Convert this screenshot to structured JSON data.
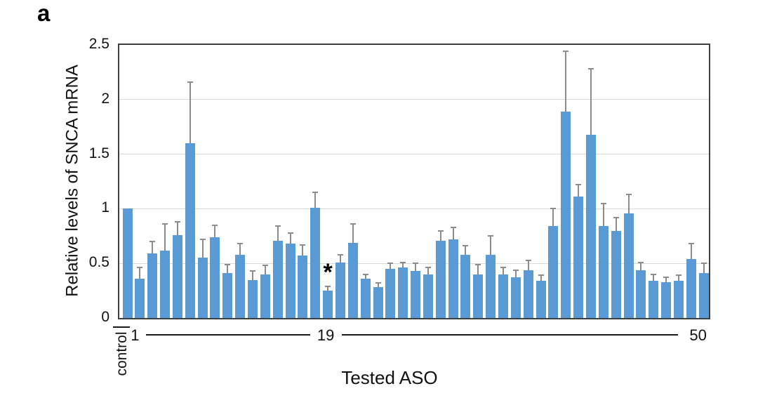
{
  "panel_label": "a",
  "chart_data": {
    "type": "bar",
    "title": "",
    "ylabel": "Relative levels of SNCA mRNA",
    "xlabel": "Tested ASO",
    "ylim": [
      0,
      2.5
    ],
    "yticks": [
      0,
      0.5,
      1,
      1.5,
      2,
      2.5
    ],
    "ytick_labels": [
      "0",
      "0.5",
      "1",
      "1.5",
      "2",
      "2.5"
    ],
    "grid": "horizontal-gridlines-on",
    "legend": "none",
    "bar_color": "#5b9bd5",
    "error_bar_color": "#8c8c8c",
    "error_bars": "upper-only",
    "x_axis_labels": [
      {
        "text": "control",
        "bar_index": 0,
        "rotated": true
      },
      {
        "text": "1",
        "bar_index": 1,
        "rotated": false
      },
      {
        "text": "19",
        "bar_index": 16,
        "rotated": false
      },
      {
        "text": "50",
        "bar_index": 46,
        "rotated": false
      }
    ],
    "annotation": {
      "text": "*",
      "bar_index": 16
    },
    "bars": [
      {
        "label": "control",
        "value": 1.0,
        "error": 0
      },
      {
        "value": 0.36,
        "error": 0.1
      },
      {
        "value": 0.59,
        "error": 0.11
      },
      {
        "value": 0.62,
        "error": 0.24
      },
      {
        "value": 0.76,
        "error": 0.12
      },
      {
        "value": 1.6,
        "error": 0.56
      },
      {
        "value": 0.55,
        "error": 0.17
      },
      {
        "value": 0.74,
        "error": 0.11
      },
      {
        "value": 0.41,
        "error": 0.08
      },
      {
        "value": 0.58,
        "error": 0.1
      },
      {
        "value": 0.35,
        "error": 0.08
      },
      {
        "value": 0.4,
        "error": 0.08
      },
      {
        "value": 0.71,
        "error": 0.13
      },
      {
        "value": 0.68,
        "error": 0.1
      },
      {
        "value": 0.57,
        "error": 0.1
      },
      {
        "value": 1.01,
        "error": 0.14
      },
      {
        "value": 0.25,
        "error": 0.04,
        "starred": true
      },
      {
        "value": 0.51,
        "error": 0.07
      },
      {
        "value": 0.69,
        "error": 0.17
      },
      {
        "value": 0.36,
        "error": 0.04
      },
      {
        "value": 0.28,
        "error": 0.04
      },
      {
        "value": 0.45,
        "error": 0.05
      },
      {
        "value": 0.46,
        "error": 0.05
      },
      {
        "value": 0.43,
        "error": 0.07
      },
      {
        "value": 0.4,
        "error": 0.06
      },
      {
        "value": 0.71,
        "error": 0.09
      },
      {
        "value": 0.72,
        "error": 0.11
      },
      {
        "value": 0.58,
        "error": 0.08
      },
      {
        "value": 0.4,
        "error": 0.09
      },
      {
        "value": 0.58,
        "error": 0.17
      },
      {
        "value": 0.4,
        "error": 0.06
      },
      {
        "value": 0.37,
        "error": 0.07
      },
      {
        "value": 0.44,
        "error": 0.09
      },
      {
        "value": 0.34,
        "error": 0.05
      },
      {
        "value": 0.84,
        "error": 0.16
      },
      {
        "value": 1.89,
        "error": 0.55
      },
      {
        "value": 1.11,
        "error": 0.11
      },
      {
        "value": 1.68,
        "error": 0.6
      },
      {
        "value": 0.84,
        "error": 0.21
      },
      {
        "value": 0.8,
        "error": 0.12
      },
      {
        "value": 0.96,
        "error": 0.17
      },
      {
        "value": 0.44,
        "error": 0.07
      },
      {
        "value": 0.34,
        "error": 0.06
      },
      {
        "value": 0.33,
        "error": 0.04
      },
      {
        "value": 0.34,
        "error": 0.05
      },
      {
        "value": 0.54,
        "error": 0.14
      },
      {
        "value": 0.41,
        "error": 0.09
      }
    ]
  }
}
